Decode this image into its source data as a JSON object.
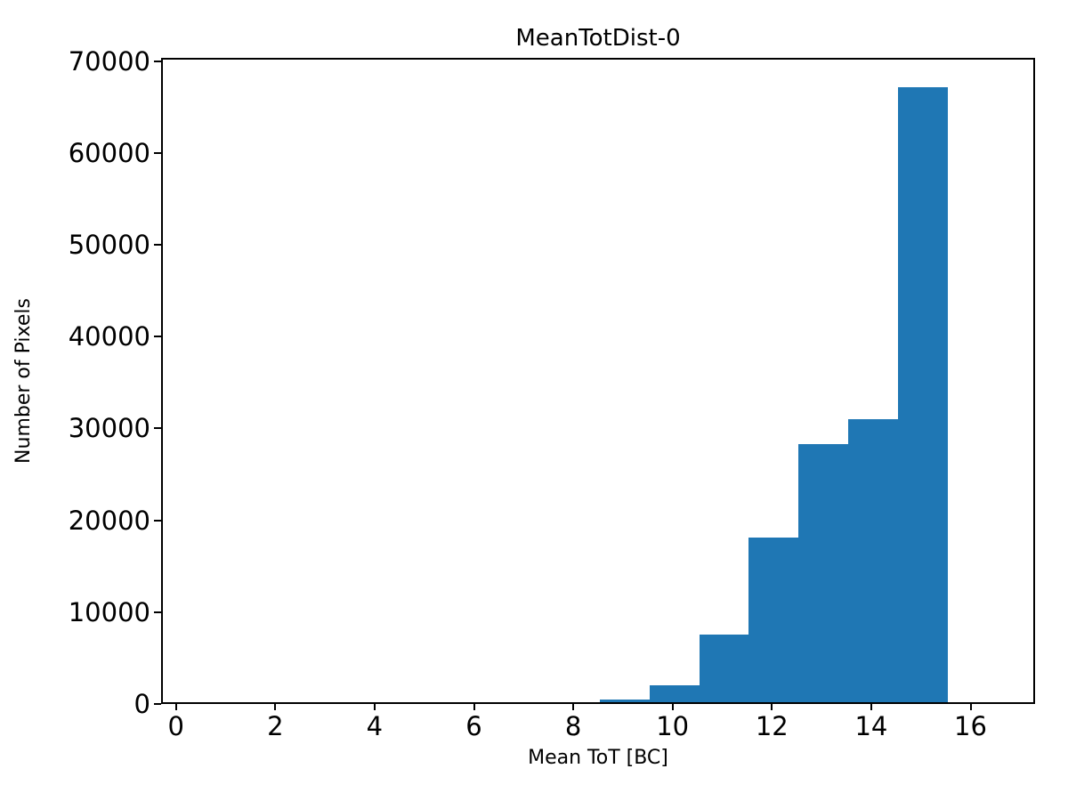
{
  "chart_data": {
    "type": "bar",
    "subtype": "histogram",
    "title": "MeanTotDist-0",
    "xlabel": "Mean ToT [BC]",
    "ylabel": "Number of Pixels",
    "xlim": [
      -0.3,
      17.3
    ],
    "ylim": [
      0,
      70350
    ],
    "x_ticks": [
      0,
      2,
      4,
      6,
      8,
      10,
      12,
      14,
      16
    ],
    "y_ticks": [
      0,
      10000,
      20000,
      30000,
      40000,
      50000,
      60000,
      70000
    ],
    "bar_color": "#1f77b4",
    "bin_edges": [
      8.5,
      9.5,
      10.5,
      11.5,
      12.5,
      13.5,
      14.5,
      15.5
    ],
    "counts": [
      300,
      1800,
      7400,
      17900,
      28100,
      30800,
      67000
    ],
    "grid": false,
    "legend": null,
    "background_color": "#ffffff",
    "axis_color": "#000000"
  }
}
